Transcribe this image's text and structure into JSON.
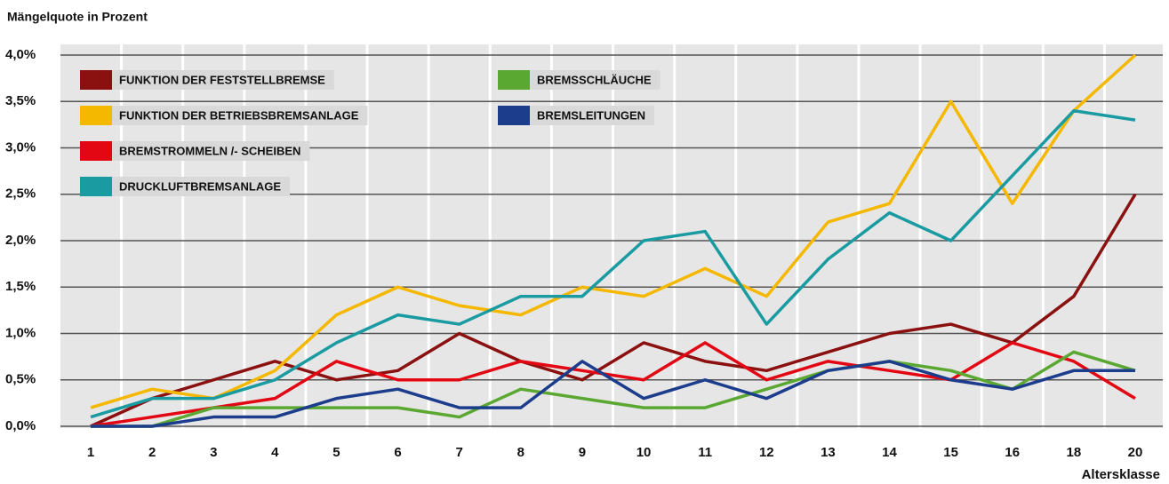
{
  "chart_data": {
    "type": "line",
    "y_axis_label": "Mängelquote in Prozent",
    "x_axis_label": "Altersklasse",
    "categories": [
      "1",
      "2",
      "3",
      "4",
      "5",
      "6",
      "7",
      "8",
      "9",
      "10",
      "11",
      "12",
      "13",
      "14",
      "15",
      "16",
      "18",
      "20"
    ],
    "ylim": [
      0,
      4
    ],
    "yticks": [
      {
        "value": 0,
        "label": "0,0%"
      },
      {
        "value": 0.5,
        "label": "0,5%"
      },
      {
        "value": 1,
        "label": "1,0%"
      },
      {
        "value": 1.5,
        "label": "1,5%"
      },
      {
        "value": 2,
        "label": "2,0%"
      },
      {
        "value": 2.5,
        "label": "2,5%"
      },
      {
        "value": 3,
        "label": "3,0%"
      },
      {
        "value": 3.5,
        "label": "3,5%"
      },
      {
        "value": 4,
        "label": "4,0%"
      }
    ],
    "grid": true,
    "series": [
      {
        "name": "FUNKTION DER FESTSTELLBREMSE",
        "color": "#8b1010",
        "values": [
          0.0,
          0.3,
          0.5,
          0.7,
          0.5,
          0.6,
          1.0,
          0.7,
          0.5,
          0.9,
          0.7,
          0.6,
          0.8,
          1.0,
          1.1,
          0.9,
          1.4,
          2.5
        ]
      },
      {
        "name": "FUNKTION DER BETRIEBSBREMSANLAGE",
        "color": "#f5b800",
        "values": [
          0.2,
          0.4,
          0.3,
          0.6,
          1.2,
          1.5,
          1.3,
          1.2,
          1.5,
          1.4,
          1.7,
          1.4,
          2.2,
          2.4,
          3.5,
          2.4,
          3.4,
          4.0
        ]
      },
      {
        "name": "BREMSTROMMELN /- SCHEIBEN",
        "color": "#e30613",
        "values": [
          0.0,
          0.1,
          0.2,
          0.3,
          0.7,
          0.5,
          0.5,
          0.7,
          0.6,
          0.5,
          0.9,
          0.5,
          0.7,
          0.6,
          0.5,
          0.9,
          0.7,
          0.3
        ]
      },
      {
        "name": "DRUCKLUFTBREMSANLAGE",
        "color": "#1a9ba1",
        "values": [
          0.1,
          0.3,
          0.3,
          0.5,
          0.9,
          1.2,
          1.1,
          1.4,
          1.4,
          2.0,
          2.1,
          1.1,
          1.8,
          2.3,
          2.0,
          2.7,
          3.4,
          3.3
        ]
      },
      {
        "name": "BREMSSCHLÄUCHE",
        "color": "#5aa832",
        "values": [
          0.0,
          0.0,
          0.2,
          0.2,
          0.2,
          0.2,
          0.1,
          0.4,
          0.3,
          0.2,
          0.2,
          0.4,
          0.6,
          0.7,
          0.6,
          0.4,
          0.8,
          0.6
        ]
      },
      {
        "name": "BREMSLEITUNGEN",
        "color": "#1c3c8c",
        "values": [
          0.0,
          0.0,
          0.1,
          0.1,
          0.3,
          0.4,
          0.2,
          0.2,
          0.7,
          0.3,
          0.5,
          0.3,
          0.6,
          0.7,
          0.5,
          0.4,
          0.6,
          0.6
        ]
      }
    ]
  }
}
